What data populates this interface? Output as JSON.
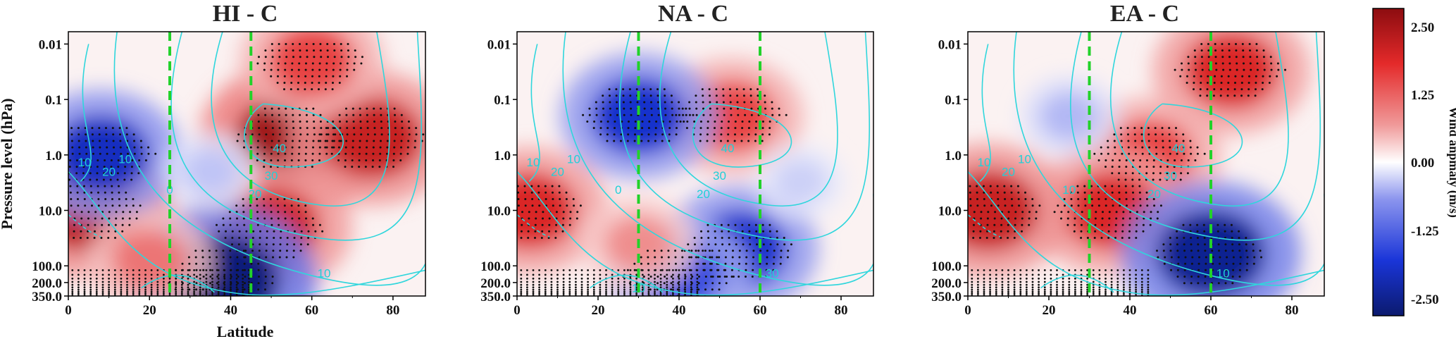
{
  "chart_data": [
    {
      "type": "heatmap",
      "title": "HI - C",
      "xlabel": "Latitude",
      "ylabel": "Pressure level (hPa)",
      "xlim": [
        0,
        88
      ],
      "xticks": [
        "0",
        "20",
        "40",
        "60",
        "80"
      ],
      "yscale": "log",
      "ylim": [
        350,
        0.006
      ],
      "yticks": [
        "0.01",
        "0.1",
        "1.0",
        "10.0",
        "100.0",
        "200.0",
        "350.0"
      ],
      "vlines": [
        25,
        45
      ],
      "contour_labels": [
        "40",
        "30",
        "20",
        "20",
        "10",
        "10",
        "0",
        "10"
      ],
      "anomalies": [
        {
          "lat": 55,
          "p": 0.5,
          "value": 2.5
        },
        {
          "lat": 75,
          "p": 0.5,
          "value": 2.1
        },
        {
          "lat": 60,
          "p": 0.02,
          "value": 1.6
        },
        {
          "lat": 50,
          "p": 20,
          "value": 2.0
        },
        {
          "lat": 5,
          "p": 10,
          "value": 2.2
        },
        {
          "lat": 8,
          "p": 1,
          "value": -2.0
        },
        {
          "lat": 38,
          "p": 180,
          "value": -2.6
        },
        {
          "lat": 20,
          "p": 80,
          "value": 1.2
        },
        {
          "lat": 35,
          "p": 2,
          "value": -0.5
        }
      ]
    },
    {
      "type": "heatmap",
      "title": "NA - C",
      "xlim": [
        0,
        88
      ],
      "xticks": [
        "0",
        "20",
        "40",
        "60",
        "80"
      ],
      "yscale": "log",
      "ylim": [
        350,
        0.006
      ],
      "yticks": [
        "0.01",
        "0.1",
        "1.0",
        "10.0",
        "100.0",
        "200.0",
        "350.0"
      ],
      "vlines": [
        30,
        60
      ],
      "contour_labels": [
        "40",
        "30",
        "20",
        "20",
        "10",
        "10",
        "0",
        "30",
        "10"
      ],
      "anomalies": [
        {
          "lat": 53,
          "p": 0.2,
          "value": 1.6
        },
        {
          "lat": 30,
          "p": 0.2,
          "value": -1.9
        },
        {
          "lat": 55,
          "p": 50,
          "value": -1.9
        },
        {
          "lat": 40,
          "p": 150,
          "value": -1.6
        },
        {
          "lat": 3,
          "p": 10,
          "value": 1.9
        },
        {
          "lat": 30,
          "p": 40,
          "value": 1.0
        },
        {
          "lat": 70,
          "p": 3,
          "value": -0.4
        }
      ]
    },
    {
      "type": "heatmap",
      "title": "EA - C",
      "xlim": [
        0,
        88
      ],
      "xticks": [
        "0",
        "20",
        "40",
        "60",
        "80"
      ],
      "yscale": "log",
      "ylim": [
        350,
        0.006
      ],
      "yticks": [
        "0.01",
        "0.1",
        "1.0",
        "10.0",
        "100.0",
        "200.0",
        "350.0"
      ],
      "vlines": [
        30,
        60
      ],
      "contour_labels": [
        "40",
        "30",
        "20",
        "20",
        "10",
        "10",
        "10",
        "10"
      ],
      "anomalies": [
        {
          "lat": 65,
          "p": 0.03,
          "value": 1.9
        },
        {
          "lat": 45,
          "p": 1,
          "value": 1.6
        },
        {
          "lat": 35,
          "p": 10,
          "value": 1.9
        },
        {
          "lat": 60,
          "p": 60,
          "value": -2.4
        },
        {
          "lat": 5,
          "p": 10,
          "value": 2.1
        },
        {
          "lat": 25,
          "p": 0.2,
          "value": -0.6
        }
      ]
    }
  ],
  "colorbar": {
    "label": "Wind anpmaly (m/s)",
    "ticks": [
      "2.50",
      "1.25",
      "0.00",
      "-1.25",
      "-2.50"
    ],
    "range": [
      -2.7,
      2.7
    ],
    "colors": [
      "#0b1a6e",
      "#1a35d8",
      "#8c95ee",
      "#ffffff",
      "#f09a9a",
      "#e42a2a",
      "#8c0c10"
    ]
  }
}
